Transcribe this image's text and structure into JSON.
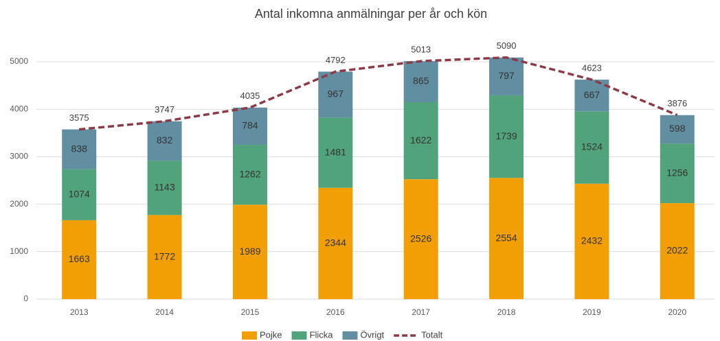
{
  "chart_data": {
    "type": "stacked_bar_line",
    "title": "Antal inkomna anmälningar per år och kön",
    "categories": [
      "2013",
      "2014",
      "2015",
      "2016",
      "2017",
      "2018",
      "2019",
      "2020"
    ],
    "series": [
      {
        "name": "Pojke",
        "color": "#f29f05",
        "values": [
          1663,
          1772,
          1989,
          2344,
          2526,
          2554,
          2432,
          2022
        ]
      },
      {
        "name": "Flicka",
        "color": "#51a37b",
        "values": [
          1074,
          1143,
          1262,
          1481,
          1622,
          1739,
          1524,
          1256
        ]
      },
      {
        "name": "Övrigt",
        "color": "#618ea0",
        "values": [
          838,
          832,
          784,
          967,
          865,
          797,
          667,
          598
        ]
      },
      {
        "name": "Totalt",
        "color": "#8c3a48",
        "type": "line",
        "values": [
          3575,
          3747,
          4035,
          4792,
          5013,
          5090,
          4623,
          3876
        ]
      }
    ],
    "ylim": [
      0,
      5000
    ],
    "yticks": [
      0,
      1000,
      2000,
      3000,
      4000,
      5000
    ],
    "grid": true,
    "legend": "bottom"
  }
}
